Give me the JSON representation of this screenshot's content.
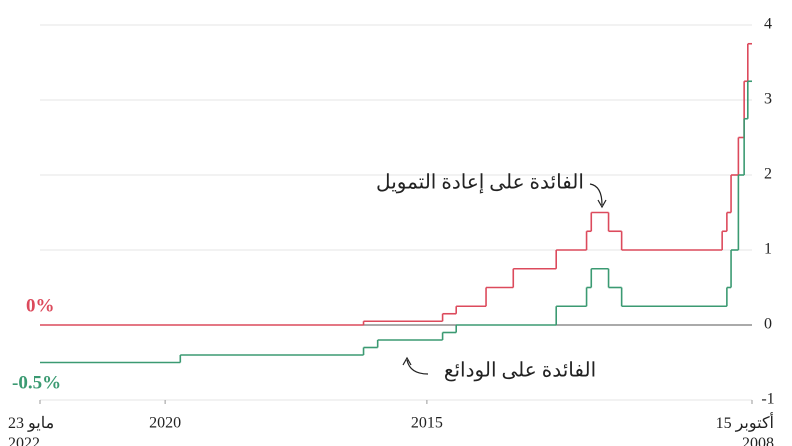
{
  "chart_data": {
    "type": "step-line",
    "xlim": [
      2022.39,
      2008.79
    ],
    "xticks": [
      {
        "value": 2022.39,
        "label": "23 مايو 2022"
      },
      2020,
      2015,
      {
        "value": 2008.79,
        "label": "15 أكتوبر 2008"
      }
    ],
    "ylim": [
      -1,
      4
    ],
    "yticks": [
      -1,
      0,
      1,
      2,
      3,
      4
    ],
    "grid": true,
    "series": [
      {
        "name": "الفائدة على إعادة التمويل",
        "color": "#dc4a5c",
        "x": [
          2008.79,
          2008.87,
          2008.94,
          2009.05,
          2009.19,
          2009.27,
          2009.36,
          2011.28,
          2011.53,
          2011.86,
          2011.95,
          2012.53,
          2013.35,
          2013.87,
          2014.44,
          2014.7,
          2016.21,
          2022.39
        ],
        "values": [
          3.75,
          3.25,
          2.5,
          2.0,
          1.5,
          1.25,
          1.0,
          1.25,
          1.5,
          1.25,
          1.0,
          0.75,
          0.5,
          0.25,
          0.15,
          0.05,
          0,
          0
        ]
      },
      {
        "name": "الفائدة على الودائع",
        "color": "#3b9a72",
        "x": [
          2008.79,
          2008.87,
          2008.94,
          2009.05,
          2009.19,
          2009.27,
          2011.28,
          2011.53,
          2011.86,
          2011.95,
          2012.53,
          2014.44,
          2014.7,
          2015.94,
          2016.21,
          2019.71,
          2022.39
        ],
        "values": [
          3.25,
          2.75,
          2.0,
          1.0,
          0.5,
          0.25,
          0.5,
          0.75,
          0.5,
          0.25,
          0,
          -0.1,
          -0.2,
          -0.3,
          -0.4,
          -0.5,
          -0.5
        ]
      }
    ],
    "annotations": [
      {
        "text": "0%"
      },
      {
        "text": "-0.5%"
      }
    ]
  }
}
